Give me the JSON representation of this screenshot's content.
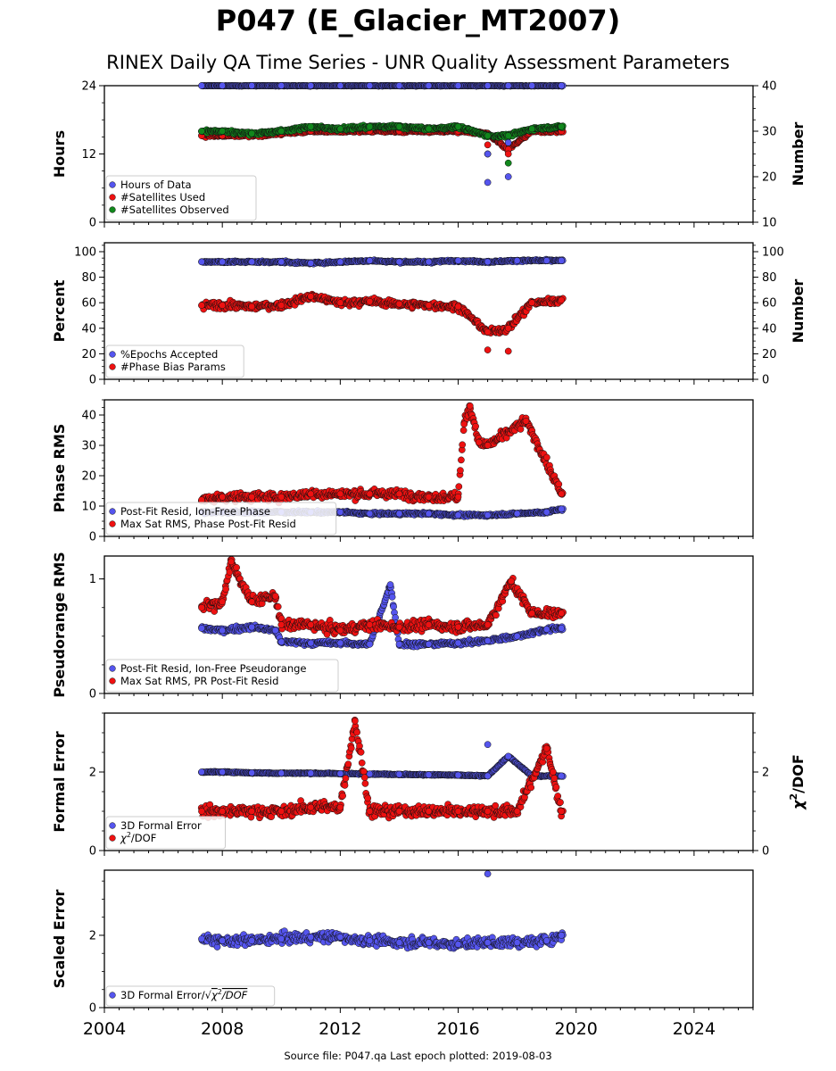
{
  "header": {
    "title": "P047 (E_Glacier_MT2007)",
    "subtitle": "RINEX Daily QA Time Series - UNR Quality Assessment Parameters"
  },
  "footer": {
    "source": "Source file: P047.qa Last epoch plotted: 2019-08-03"
  },
  "colors": {
    "blue": "#5555ee",
    "red": "#ee1111",
    "green": "#11881c",
    "navy": "#0a0a3a"
  },
  "chart_data": [
    {
      "type": "scatter",
      "ylabel": "Hours",
      "y2label": "Number",
      "xlim": [
        2004,
        2026
      ],
      "ylim": [
        0,
        24
      ],
      "y2lim": [
        10,
        40
      ],
      "yticks": [
        "0",
        "12",
        "24"
      ],
      "y2ticks": [
        "10",
        "20",
        "30",
        "40"
      ],
      "grid": false,
      "legend_position": "lower-left",
      "series": [
        {
          "name": "Hours of Data",
          "color": "blue",
          "axis": "left",
          "x": [
            2007.3,
            2008.0,
            2009.0,
            2010.0,
            2011.0,
            2012.0,
            2013.0,
            2014.0,
            2015.0,
            2016.0,
            2017.0,
            2017.7,
            2018.5,
            2019.5
          ],
          "y": [
            24,
            24,
            24,
            24,
            24,
            24,
            24,
            24,
            24,
            24,
            24,
            24,
            24,
            24
          ]
        },
        {
          "name": "#Satellites Used",
          "color": "red",
          "axis": "right",
          "x": [
            2007.3,
            2008.0,
            2009.0,
            2010.0,
            2011.0,
            2012.0,
            2013.0,
            2014.0,
            2015.0,
            2016.0,
            2017.0,
            2017.0,
            2017.7,
            2017.7,
            2018.5,
            2019.5
          ],
          "y": [
            29,
            29,
            29,
            29.5,
            30,
            30,
            30,
            30,
            30,
            30,
            29.5,
            27,
            26,
            25,
            30,
            30
          ]
        },
        {
          "name": "#Satellites Observed",
          "color": "green",
          "axis": "right",
          "x": [
            2007.3,
            2008.0,
            2009.0,
            2010.0,
            2011.0,
            2012.0,
            2013.0,
            2014.0,
            2015.0,
            2016.0,
            2017.0,
            2017.0,
            2017.7,
            2017.7,
            2018.5,
            2019.5
          ],
          "y": [
            30,
            30,
            29.5,
            30,
            31,
            30.5,
            31,
            31,
            30.5,
            31,
            29,
            25,
            29,
            23,
            30.5,
            31
          ]
        }
      ],
      "outliers": [
        {
          "series": "Hours of Data",
          "x": 2017.0,
          "y": 12
        },
        {
          "series": "Hours of Data",
          "x": 2017.0,
          "y": 7
        },
        {
          "series": "Hours of Data",
          "x": 2017.7,
          "y": 14
        },
        {
          "series": "Hours of Data",
          "x": 2017.7,
          "y": 8
        }
      ]
    },
    {
      "type": "scatter",
      "ylabel": "Percent",
      "y2label": "Number",
      "xlim": [
        2004,
        2026
      ],
      "ylim": [
        0,
        107
      ],
      "y2lim": [
        0,
        107
      ],
      "yticks": [
        "0",
        "20",
        "40",
        "60",
        "80",
        "100"
      ],
      "y2ticks": [
        "0",
        "20",
        "40",
        "60",
        "80",
        "100"
      ],
      "grid": false,
      "legend_position": "lower-left",
      "series": [
        {
          "name": "%Epochs Accepted",
          "color": "blue",
          "axis": "left",
          "x": [
            2007.3,
            2008.0,
            2009.0,
            2010.0,
            2011.0,
            2012.0,
            2013.0,
            2014.0,
            2015.0,
            2016.0,
            2017.0,
            2018.0,
            2019.0,
            2019.5
          ],
          "y": [
            92,
            92,
            92,
            92,
            91,
            92,
            93,
            92,
            92,
            93,
            92,
            93,
            93,
            93
          ]
        },
        {
          "name": "#Phase Bias Params",
          "color": "red",
          "axis": "left",
          "x": [
            2007.3,
            2008.0,
            2009.0,
            2010.0,
            2011.0,
            2012.0,
            2013.0,
            2014.0,
            2015.0,
            2016.0,
            2017.0,
            2017.0,
            2017.7,
            2017.7,
            2018.5,
            2019.5
          ],
          "y": [
            58,
            58,
            57,
            58,
            65,
            60,
            61,
            59,
            58,
            57,
            37,
            23,
            40,
            22,
            60,
            62
          ]
        }
      ]
    },
    {
      "type": "scatter",
      "ylabel": "Phase RMS",
      "xlim": [
        2004,
        2026
      ],
      "ylim": [
        0,
        45
      ],
      "yticks": [
        "0",
        "10",
        "20",
        "30",
        "40"
      ],
      "grid": false,
      "legend_position": "lower-left",
      "series": [
        {
          "name": "Post-Fit Resid, Ion-Free Phase",
          "color": "blue",
          "x": [
            2007.3,
            2008.0,
            2009.0,
            2010.0,
            2011.0,
            2012.0,
            2013.0,
            2014.0,
            2015.0,
            2016.0,
            2017.0,
            2018.0,
            2019.0,
            2019.5
          ],
          "y": [
            8,
            8,
            8,
            8,
            8,
            8,
            7.5,
            7.5,
            7.5,
            7,
            7,
            7.5,
            8,
            9
          ]
        },
        {
          "name": "Max Sat RMS, Phase Post-Fit Resid",
          "color": "red",
          "x": [
            2007.3,
            2008.0,
            2009.0,
            2010.0,
            2011.0,
            2012.0,
            2013.0,
            2014.0,
            2015.0,
            2016.0,
            2016.2,
            2016.4,
            2016.7,
            2017.0,
            2018.3,
            2019.5
          ],
          "y": [
            12,
            13,
            13,
            13,
            14,
            14,
            14,
            14,
            13,
            13,
            37,
            43,
            31,
            30,
            38,
            14
          ]
        }
      ]
    },
    {
      "type": "scatter",
      "ylabel": "Pseudorange RMS",
      "xlim": [
        2004,
        2026
      ],
      "ylim": [
        0,
        1.2
      ],
      "yticks": [
        "0",
        "1"
      ],
      "grid": false,
      "legend_position": "lower-left",
      "series": [
        {
          "name": "Post-Fit Resid, Ion-Free Pseudorange",
          "color": "blue",
          "x": [
            2007.3,
            2008.0,
            2009.0,
            2009.8,
            2010.0,
            2011.0,
            2012.0,
            2013.0,
            2013.7,
            2014.0,
            2015.0,
            2016.0,
            2017.0,
            2018.0,
            2019.0,
            2019.5
          ],
          "y": [
            0.57,
            0.55,
            0.58,
            0.55,
            0.45,
            0.44,
            0.44,
            0.43,
            0.95,
            0.43,
            0.43,
            0.44,
            0.46,
            0.5,
            0.56,
            0.57
          ]
        },
        {
          "name": "Max Sat RMS, PR Post-Fit Resid",
          "color": "red",
          "x": [
            2007.3,
            2008.0,
            2008.3,
            2009.0,
            2009.8,
            2010.0,
            2011.0,
            2012.0,
            2013.0,
            2014.0,
            2015.0,
            2016.0,
            2017.0,
            2017.8,
            2018.5,
            2019.5
          ],
          "y": [
            0.75,
            0.8,
            1.15,
            0.8,
            0.85,
            0.6,
            0.6,
            0.55,
            0.6,
            0.58,
            0.6,
            0.58,
            0.6,
            0.98,
            0.7,
            0.7
          ]
        }
      ]
    },
    {
      "type": "scatter",
      "ylabel": "Formal Error",
      "y2label": "χ²/DOF",
      "xlim": [
        2004,
        2026
      ],
      "ylim": [
        0,
        3.5
      ],
      "y2lim": [
        0,
        3.5
      ],
      "yticks": [
        "0",
        "2"
      ],
      "y2ticks": [
        "0",
        "2"
      ],
      "grid": false,
      "legend_position": "lower-left",
      "series": [
        {
          "name": "3D Formal Error",
          "color": "blue",
          "x": [
            2007.3,
            2008.0,
            2009.0,
            2010.0,
            2011.0,
            2012.0,
            2013.0,
            2014.0,
            2015.0,
            2016.0,
            2017.0,
            2017.0,
            2017.7,
            2018.5,
            2019.5
          ],
          "y": [
            2.0,
            2.0,
            1.98,
            1.97,
            1.97,
            1.96,
            1.95,
            1.94,
            1.93,
            1.92,
            1.9,
            2.7,
            2.4,
            1.9,
            1.9
          ]
        },
        {
          "name": "χ²/DOF",
          "color": "red",
          "x": [
            2007.3,
            2008.0,
            2009.0,
            2010.0,
            2011.0,
            2012.0,
            2012.5,
            2013.0,
            2014.0,
            2015.0,
            2016.0,
            2017.0,
            2018.0,
            2019.0,
            2019.5
          ],
          "y": [
            1.0,
            1.0,
            1.0,
            1.0,
            1.1,
            1.1,
            3.3,
            1.0,
            1.0,
            1.0,
            1.0,
            1.0,
            1.0,
            2.6,
            1.0
          ]
        }
      ],
      "legend_label_parts": {
        "chi": "χ",
        "sup": "2",
        "rest": "/DOF"
      }
    },
    {
      "type": "scatter",
      "ylabel": "Scaled Error",
      "xlim": [
        2004,
        2026
      ],
      "ylim": [
        0,
        3.8
      ],
      "yticks": [
        "0",
        "2"
      ],
      "xticks": [
        "2004",
        "2008",
        "2012",
        "2016",
        "2020",
        "2024"
      ],
      "grid": false,
      "legend_position": "lower-left",
      "series": [
        {
          "name": "3D Formal Error/√χ²/DOF",
          "color": "blue",
          "x": [
            2007.3,
            2008.0,
            2009.0,
            2010.0,
            2011.0,
            2012.0,
            2013.0,
            2014.0,
            2015.0,
            2016.0,
            2017.0,
            2017.0,
            2018.0,
            2019.0,
            2019.5
          ],
          "y": [
            1.9,
            1.85,
            1.85,
            1.9,
            1.95,
            1.95,
            1.85,
            1.8,
            1.8,
            1.75,
            1.8,
            3.7,
            1.8,
            1.85,
            2.0
          ]
        }
      ],
      "legend_label_parts": {
        "pre": "3D Formal Error/",
        "root": "√",
        "chi": "χ",
        "sup": "2",
        "rest": "/DOF"
      }
    }
  ]
}
